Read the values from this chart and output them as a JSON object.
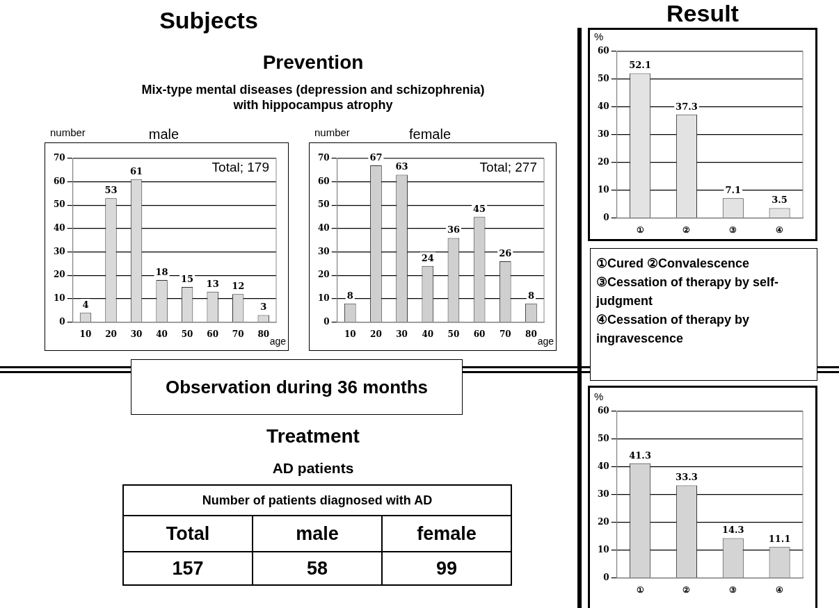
{
  "chart_data": [
    {
      "type": "bar",
      "title": "male",
      "ylabel": "number",
      "xlabel": "age",
      "categories": [
        "10",
        "20",
        "30",
        "40",
        "50",
        "60",
        "70",
        "80"
      ],
      "values": [
        4,
        53,
        61,
        18,
        15,
        13,
        12,
        3
      ],
      "color": "#d9d9d9",
      "ylim": [
        0,
        70
      ],
      "yticks": [
        0,
        10,
        20,
        30,
        40,
        50,
        60,
        70
      ],
      "grid": "y",
      "data_labels": true,
      "annotations": [
        "Total; 179"
      ]
    },
    {
      "type": "bar",
      "title": "female",
      "ylabel": "number",
      "xlabel": "age",
      "categories": [
        "10",
        "20",
        "30",
        "40",
        "50",
        "60",
        "70",
        "80"
      ],
      "values": [
        8,
        67,
        63,
        24,
        36,
        45,
        26,
        8
      ],
      "color": "#cfcfcf",
      "ylim": [
        0,
        70
      ],
      "yticks": [
        0,
        10,
        20,
        30,
        40,
        50,
        60,
        70
      ],
      "grid": "y",
      "data_labels": true,
      "annotations": [
        "Total; 277"
      ]
    },
    {
      "type": "bar",
      "ylabel": "%",
      "categories": [
        "①",
        "②",
        "③",
        "④"
      ],
      "values": [
        52.1,
        37.3,
        7.1,
        3.5
      ],
      "color": "#e3e3e3",
      "ylim": [
        0,
        60
      ],
      "yticks": [
        0,
        10,
        20,
        30,
        40,
        50,
        60
      ],
      "grid": "y",
      "data_labels": true
    },
    {
      "type": "bar",
      "ylabel": "%",
      "categories": [
        "①",
        "②",
        "③",
        "④"
      ],
      "values": [
        41.3,
        33.3,
        14.3,
        11.1
      ],
      "color": "#d4d4d4",
      "ylim": [
        0,
        60
      ],
      "yticks": [
        0,
        10,
        20,
        30,
        40,
        50,
        60
      ],
      "grid": "y",
      "data_labels": true
    },
    {
      "type": "other",
      "annotations": [
        "Subjects",
        "Result",
        "Prevention",
        "Mix-type mental diseases (depression and schizophrenia) with hippocampus atrophy",
        "①Cured  ②Convalescence",
        "③Cessation of therapy by self-judgment",
        "④Cessation of therapy by ingravescence",
        "Observation during 36 months",
        "Treatment",
        "AD patients",
        "Number of patients diagnosed with AD",
        "Total",
        "male",
        "female",
        "157",
        "58",
        "99"
      ]
    }
  ]
}
